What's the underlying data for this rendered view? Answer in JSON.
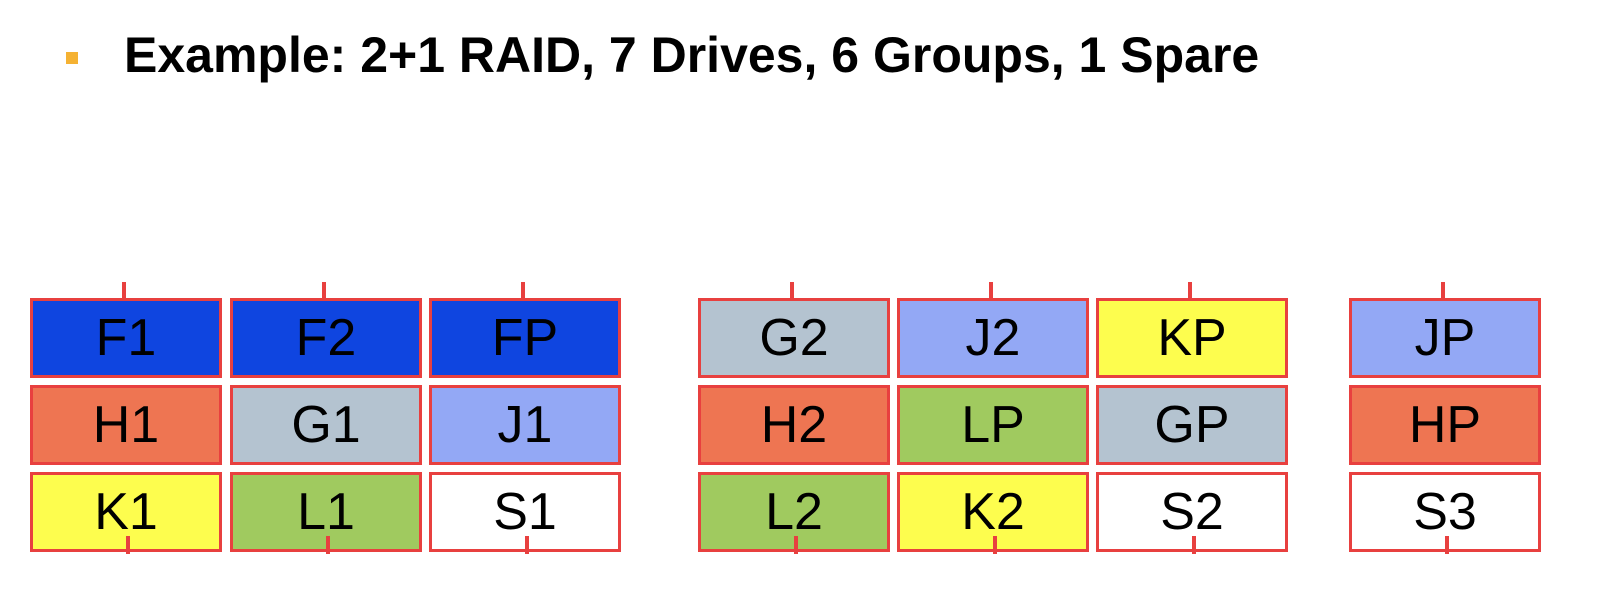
{
  "slide": {
    "bullet_color": "#f5b233",
    "title": "Example: 2+1 RAID, 7 Drives, 6 Groups, 1 Spare"
  },
  "colors": {
    "F": "#0f45e0",
    "G": "#b4c3d0",
    "H": "#ee7552",
    "J": "#93a8f5",
    "K": "#fdfd4e",
    "L": "#a0ca5f",
    "S": "#ffffff",
    "border": "#e8403f"
  },
  "drives": [
    {
      "blocks": [
        {
          "label": "F1",
          "group": "F"
        },
        {
          "label": "H1",
          "group": "H"
        },
        {
          "label": "K1",
          "group": "K"
        }
      ]
    },
    {
      "blocks": [
        {
          "label": "F2",
          "group": "F"
        },
        {
          "label": "G1",
          "group": "G"
        },
        {
          "label": "L1",
          "group": "L"
        }
      ]
    },
    {
      "blocks": [
        {
          "label": "FP",
          "group": "F"
        },
        {
          "label": "J1",
          "group": "J"
        },
        {
          "label": "S1",
          "group": "S"
        }
      ]
    },
    {
      "blocks": [
        {
          "label": "G2",
          "group": "G"
        },
        {
          "label": "H2",
          "group": "H"
        },
        {
          "label": "L2",
          "group": "L"
        }
      ]
    },
    {
      "blocks": [
        {
          "label": "J2",
          "group": "J"
        },
        {
          "label": "LP",
          "group": "L"
        },
        {
          "label": "K2",
          "group": "K"
        }
      ]
    },
    {
      "blocks": [
        {
          "label": "KP",
          "group": "K"
        },
        {
          "label": "GP",
          "group": "G"
        },
        {
          "label": "S2",
          "group": "S"
        }
      ]
    },
    {
      "blocks": [
        {
          "label": "JP",
          "group": "J"
        },
        {
          "label": "HP",
          "group": "H"
        },
        {
          "label": "S3",
          "group": "S"
        }
      ]
    }
  ]
}
